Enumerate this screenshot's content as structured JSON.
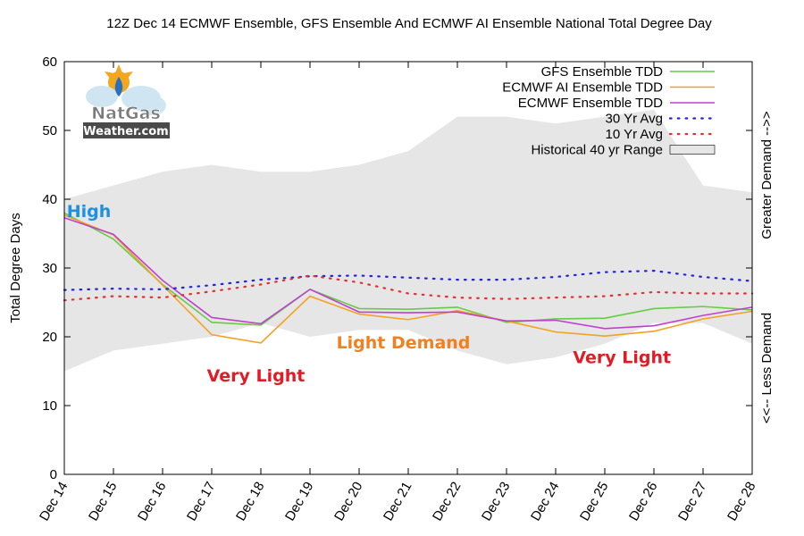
{
  "chart_data": {
    "type": "line",
    "title": "12Z Dec 14 ECMWF Ensemble, GFS Ensemble And ECMWF AI Ensemble National Total Degree Day",
    "ylabel": "Total Degree Days",
    "right_label_top": "Greater Demand -->>",
    "right_label_bottom": "<<-- Less Demand",
    "ylim": [
      0,
      60
    ],
    "yticks": [
      "0",
      "10",
      "20",
      "30",
      "40",
      "50",
      "60"
    ],
    "categories": [
      "Dec 14",
      "Dec 15",
      "Dec 16",
      "Dec 17",
      "Dec 18",
      "Dec 19",
      "Dec 20",
      "Dec 21",
      "Dec 22",
      "Dec 23",
      "Dec 24",
      "Dec 25",
      "Dec 26",
      "Dec 27",
      "Dec 28"
    ],
    "range": {
      "name": "Historical 40 yr Range",
      "low": [
        15,
        18,
        19,
        20,
        22,
        20,
        21,
        21,
        18,
        16,
        17,
        19,
        22,
        22,
        19
      ],
      "high": [
        40,
        42,
        44,
        45,
        44,
        44,
        45,
        47,
        52,
        52,
        51,
        52,
        53,
        42,
        41
      ]
    },
    "series": [
      {
        "name": "GFS Ensemble TDD",
        "color": "#66cc44",
        "style": "solid",
        "values": [
          38,
          34.2,
          27.6,
          22.1,
          21.7,
          26.9,
          24.1,
          24,
          24.3,
          22.1,
          22.6,
          22.7,
          24.1,
          24.4,
          23.9
        ]
      },
      {
        "name": "ECMWF AI Ensemble TDD",
        "color": "#f5a020",
        "style": "solid",
        "values": [
          37.7,
          34.8,
          27.5,
          20.3,
          19.1,
          25.9,
          23.3,
          22.5,
          23.8,
          22.3,
          20.7,
          20.1,
          20.8,
          22.6,
          23.7
        ]
      },
      {
        "name": "ECMWF Ensemble TDD",
        "color": "#c040d0",
        "style": "solid",
        "values": [
          37.3,
          34.9,
          28.2,
          22.8,
          21.9,
          26.9,
          23.6,
          23.5,
          23.6,
          22.3,
          22.4,
          21.2,
          21.6,
          23.1,
          24.3
        ]
      },
      {
        "name": "30 Yr Avg",
        "color": "#2222dd",
        "style": "dotted",
        "values": [
          26.8,
          27,
          26.9,
          27.5,
          28.3,
          28.8,
          28.9,
          28.6,
          28.3,
          28.3,
          28.7,
          29.4,
          29.6,
          28.7,
          28.1
        ]
      },
      {
        "name": "10 Yr Avg",
        "color": "#e03030",
        "style": "dotted",
        "values": [
          25.3,
          25.9,
          25.7,
          26.6,
          27.6,
          28.9,
          27.9,
          26.3,
          25.7,
          25.5,
          25.7,
          25.9,
          26.5,
          26.3,
          26.3
        ]
      }
    ],
    "annotations": [
      {
        "text": "High",
        "color": "#1e90e0",
        "x": 0.5,
        "y": 38.3
      },
      {
        "text": "Very Light",
        "color": "#e01c24",
        "x": 3.9,
        "y": 14.4
      },
      {
        "text": "Light Demand",
        "color": "#f08020",
        "x": 6.9,
        "y": 19.2
      },
      {
        "text": "Very Light",
        "color": "#e01c24",
        "x": 11.35,
        "y": 17.1
      }
    ],
    "legend_position": "top-right"
  },
  "logo": {
    "line1": "NatGas",
    "line2": "Weather.com"
  },
  "colors": {
    "range_fill": "#e6e6e6",
    "axis": "#000000"
  }
}
